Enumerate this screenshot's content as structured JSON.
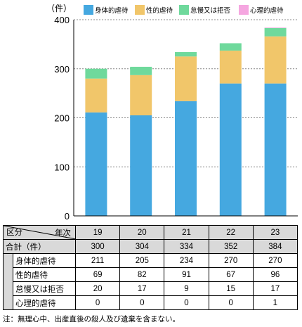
{
  "chart_data": {
    "type": "bar",
    "stacked": true,
    "unit_label": "（件）",
    "categories": [
      "19",
      "20",
      "21",
      "22",
      "23"
    ],
    "ylim": [
      0,
      400
    ],
    "yticks": [
      0,
      100,
      200,
      300,
      400
    ],
    "grid": true,
    "legend_position": "top",
    "series": [
      {
        "name": "身体的虐待",
        "values": [
          211,
          205,
          234,
          270,
          270
        ],
        "color": "#45a8e0"
      },
      {
        "name": "性的虐待",
        "values": [
          69,
          82,
          91,
          67,
          96
        ],
        "color": "#f1c66a"
      },
      {
        "name": "怠慢又は拒否",
        "values": [
          20,
          17,
          9,
          15,
          17
        ],
        "color": "#6fd99c"
      },
      {
        "name": "心理的虐待",
        "values": [
          0,
          0,
          0,
          0,
          1
        ],
        "color": "#f5a6e0"
      }
    ]
  },
  "table": {
    "corner_year": "年次",
    "corner_category": "区分",
    "years": [
      "19",
      "20",
      "21",
      "22",
      "23"
    ],
    "total": {
      "label": "合計（件）",
      "values": [
        "300",
        "304",
        "334",
        "352",
        "384"
      ]
    },
    "rows": [
      {
        "label": "身体的虐待",
        "values": [
          "211",
          "205",
          "234",
          "270",
          "270"
        ]
      },
      {
        "label": "性的虐待",
        "values": [
          "69",
          "82",
          "91",
          "67",
          "96"
        ]
      },
      {
        "label": "怠慢又は拒否",
        "values": [
          "20",
          "17",
          "9",
          "15",
          "17"
        ]
      },
      {
        "label": "心理的虐待",
        "values": [
          "0",
          "0",
          "0",
          "0",
          "1"
        ]
      }
    ]
  },
  "note": "注：無理心中、出産直後の殺人及び遺棄を含まない。"
}
